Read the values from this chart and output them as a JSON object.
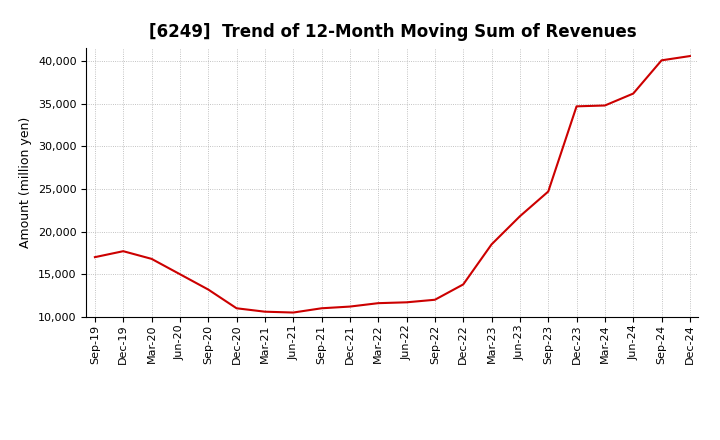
{
  "title": "[6249]  Trend of 12-Month Moving Sum of Revenues",
  "ylabel": "Amount (million yen)",
  "line_color": "#cc0000",
  "background_color": "#ffffff",
  "plot_bg_color": "#ffffff",
  "grid_color": "#b0b0b0",
  "ylim": [
    10000,
    41500
  ],
  "yticks": [
    10000,
    15000,
    20000,
    25000,
    30000,
    35000,
    40000
  ],
  "x_labels": [
    "Sep-19",
    "Dec-19",
    "Mar-20",
    "Jun-20",
    "Sep-20",
    "Dec-20",
    "Mar-21",
    "Jun-21",
    "Sep-21",
    "Dec-21",
    "Mar-22",
    "Jun-22",
    "Sep-22",
    "Dec-22",
    "Mar-23",
    "Jun-23",
    "Sep-23",
    "Dec-23",
    "Mar-24",
    "Jun-24",
    "Sep-24",
    "Dec-24"
  ],
  "values": [
    17000,
    17700,
    16800,
    15000,
    13200,
    11000,
    10600,
    10500,
    11000,
    11200,
    11600,
    11700,
    12000,
    13800,
    18500,
    21800,
    24700,
    34700,
    34800,
    36200,
    40100,
    40600
  ],
  "title_fontsize": 12,
  "ylabel_fontsize": 9,
  "tick_fontsize": 8,
  "linewidth": 1.5
}
